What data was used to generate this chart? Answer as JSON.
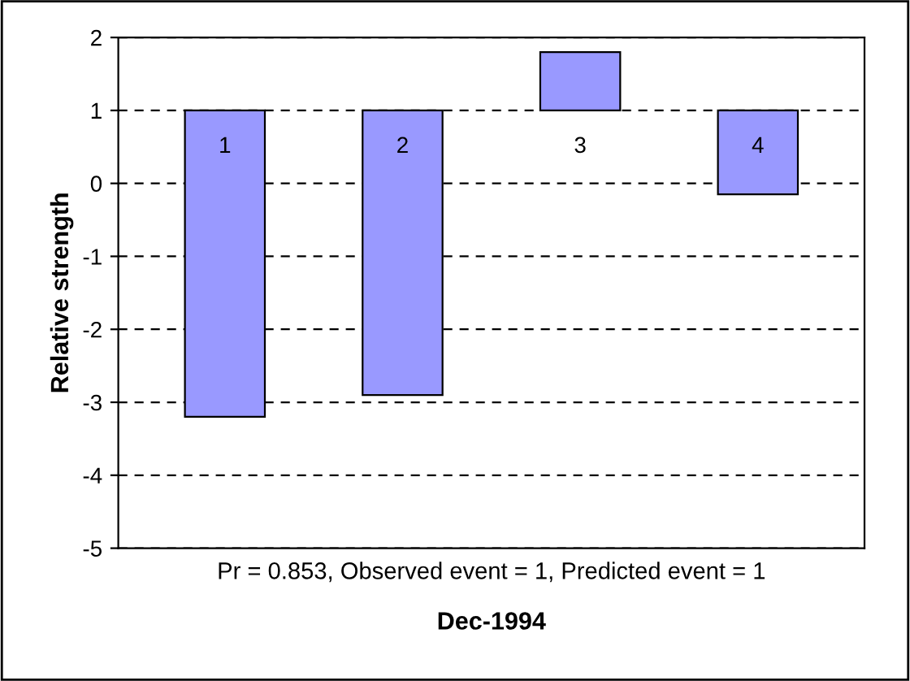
{
  "chart_data": {
    "type": "bar",
    "xlabel": "Dec-1994",
    "ylabel": "Relative strength",
    "annotations": [
      "Pr = 0.853, Observed event = 1, Predicted event = 1"
    ],
    "categories": [
      "1",
      "2",
      "3",
      "4"
    ],
    "base": [
      1,
      1,
      1,
      1
    ],
    "values": [
      -4.2,
      -3.9,
      0.8,
      -1.15
    ],
    "color": "#9999ff",
    "ylim": [
      -5,
      2
    ],
    "yticks": [
      -5,
      -4,
      -3,
      -2,
      -1,
      0,
      1,
      2
    ],
    "grid": "y"
  }
}
